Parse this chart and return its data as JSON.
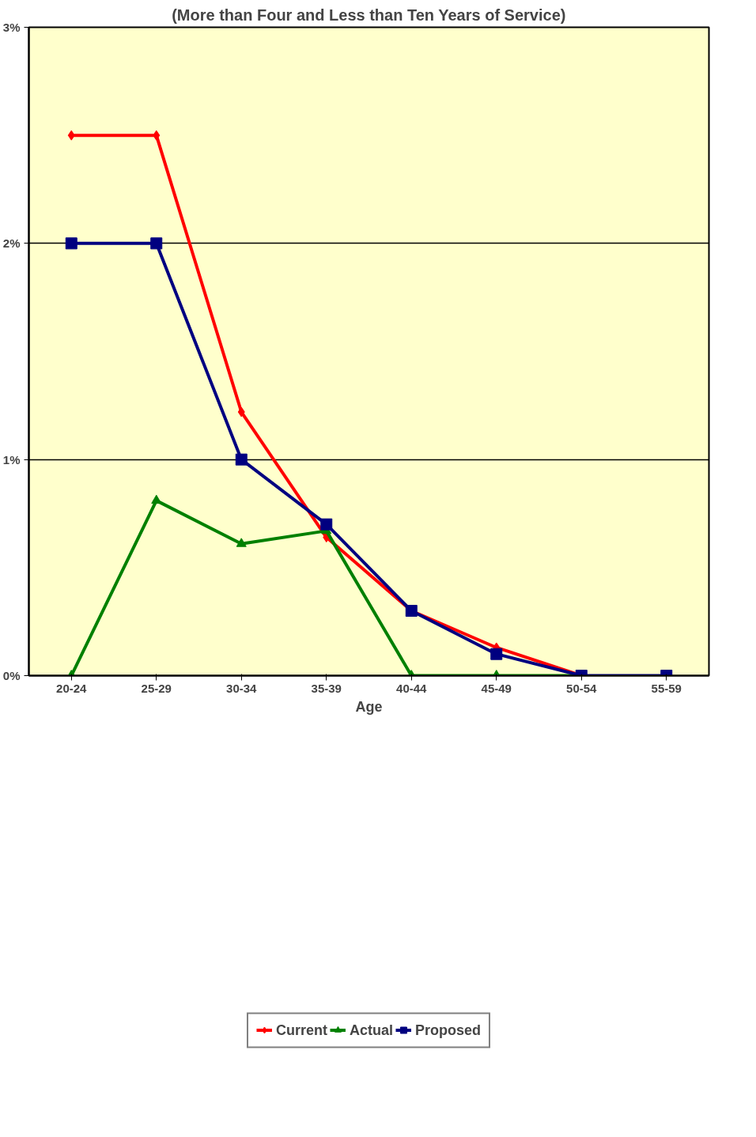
{
  "chart_data": {
    "type": "line",
    "title": "(More than Four and Less than Ten Years of Service)",
    "xlabel": "Age",
    "categories": [
      "20-24",
      "25-29",
      "30-34",
      "35-39",
      "40-44",
      "45-49",
      "50-54",
      "55-59"
    ],
    "series": [
      {
        "name": "Current",
        "color": "#ff0000",
        "marker": "diamond",
        "values": [
          2.5,
          2.5,
          1.22,
          0.64,
          0.3,
          0.13,
          0,
          null
        ]
      },
      {
        "name": "Actual",
        "color": "#008000",
        "marker": "triangle",
        "values": [
          0,
          0.81,
          0.61,
          0.67,
          0,
          0,
          0,
          null
        ]
      },
      {
        "name": "Proposed",
        "color": "#000080",
        "marker": "square",
        "values": [
          2.0,
          2.0,
          1.0,
          0.7,
          0.3,
          0.1,
          0,
          0
        ]
      }
    ],
    "ylim": [
      0,
      3
    ],
    "yticks": [
      {
        "value": 0,
        "label": "0%"
      },
      {
        "value": 1,
        "label": "1%"
      },
      {
        "value": 2,
        "label": "2%"
      },
      {
        "value": 3,
        "label": "3%"
      }
    ],
    "grid": "y",
    "legend": "bottom"
  }
}
